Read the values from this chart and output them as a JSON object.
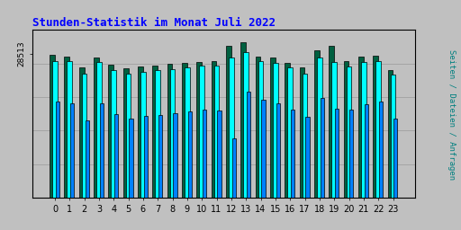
{
  "title": "Stunden-Statistik im Monat Juli 2022",
  "ylabel": "Seiten / Dateien / Anfragen",
  "xlabel_ticks": [
    0,
    1,
    2,
    3,
    4,
    5,
    6,
    7,
    8,
    9,
    10,
    11,
    12,
    13,
    14,
    15,
    16,
    17,
    18,
    19,
    20,
    21,
    22,
    23
  ],
  "ytick_label": "28513",
  "background_color": "#c0c0c0",
  "plot_bg_color": "#c0c0c0",
  "title_color": "#0000ff",
  "ylabel_color": "#008080",
  "bar_color_blue": "#0080ff",
  "bar_color_cyan": "#00ffff",
  "bar_color_green": "#006040",
  "anfragen": [
    0.92,
    0.91,
    0.84,
    0.9,
    0.855,
    0.835,
    0.845,
    0.85,
    0.86,
    0.865,
    0.875,
    0.88,
    0.975,
    1.0,
    0.91,
    0.9,
    0.87,
    0.84,
    0.95,
    0.975,
    0.88,
    0.91,
    0.915,
    0.82
  ],
  "dateien": [
    0.88,
    0.88,
    0.8,
    0.875,
    0.82,
    0.8,
    0.81,
    0.82,
    0.83,
    0.84,
    0.85,
    0.85,
    0.9,
    0.935,
    0.88,
    0.865,
    0.84,
    0.8,
    0.9,
    0.875,
    0.845,
    0.875,
    0.88,
    0.79
  ],
  "seiten": [
    0.62,
    0.61,
    0.5,
    0.605,
    0.54,
    0.51,
    0.525,
    0.535,
    0.545,
    0.555,
    0.57,
    0.56,
    0.38,
    0.68,
    0.63,
    0.605,
    0.565,
    0.52,
    0.64,
    0.575,
    0.57,
    0.6,
    0.62,
    0.51
  ],
  "ymax": 1.08,
  "ytick_val": 0.926
}
